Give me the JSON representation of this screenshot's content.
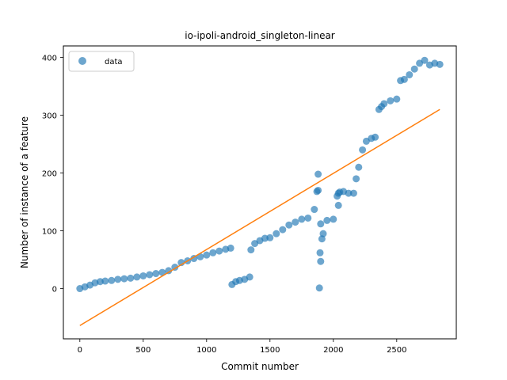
{
  "chart_data": {
    "type": "scatter",
    "title": "io-ipoli-android_singleton-linear",
    "xlabel": "Commit number",
    "ylabel": "Number of instance of a feature",
    "xlim": [
      -130,
      2970
    ],
    "ylim": [
      -87,
      420
    ],
    "xticks": [
      0,
      500,
      1000,
      1500,
      2000,
      2500
    ],
    "yticks": [
      0,
      100,
      200,
      300,
      400
    ],
    "legend": {
      "placement": "top-left",
      "entries": [
        "data"
      ]
    },
    "grid": false,
    "series": [
      {
        "name": "data",
        "kind": "scatter",
        "color": "#1f77b4",
        "x": [
          0,
          40,
          80,
          120,
          160,
          200,
          250,
          300,
          350,
          400,
          450,
          500,
          550,
          600,
          650,
          700,
          750,
          800,
          850,
          900,
          950,
          1000,
          1050,
          1100,
          1150,
          1190,
          1200,
          1230,
          1260,
          1300,
          1340,
          1350,
          1380,
          1420,
          1460,
          1500,
          1550,
          1600,
          1650,
          1700,
          1750,
          1800,
          1850,
          1870,
          1880,
          1890,
          1900,
          1910,
          1920,
          1950,
          2000,
          2030,
          2040,
          2050,
          2080,
          2120,
          2160,
          2180,
          2200,
          2230,
          2260,
          2300,
          2330,
          2360,
          2380,
          2400,
          2450,
          2500,
          2530,
          2560,
          2600,
          2640,
          2680,
          2720,
          2760,
          2800,
          2840,
          1880,
          1895,
          1900,
          2040
        ],
        "y": [
          0,
          3,
          6,
          10,
          12,
          13,
          14,
          16,
          17,
          18,
          20,
          22,
          24,
          26,
          28,
          31,
          37,
          45,
          48,
          52,
          55,
          58,
          62,
          65,
          68,
          70,
          7,
          12,
          14,
          16,
          20,
          67,
          78,
          83,
          87,
          88,
          95,
          102,
          110,
          115,
          120,
          122,
          137,
          168,
          170,
          1,
          47,
          86,
          95,
          118,
          120,
          160,
          165,
          167,
          168,
          165,
          165,
          190,
          210,
          240,
          255,
          260,
          262,
          310,
          315,
          320,
          325,
          328,
          360,
          362,
          370,
          380,
          390,
          395,
          387,
          390,
          388,
          198,
          62,
          112,
          144
        ]
      },
      {
        "name": "",
        "kind": "line",
        "color": "#ff7f0e",
        "x": [
          0,
          2840
        ],
        "y": [
          -64,
          310
        ]
      }
    ]
  }
}
